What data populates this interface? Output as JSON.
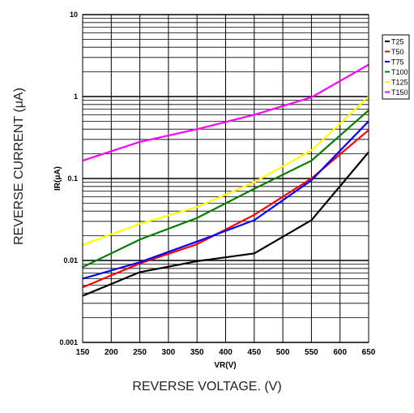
{
  "chart_data": {
    "type": "line",
    "title": "",
    "xlabel": "VR(V)",
    "ylabel": "IR(μA)",
    "outer_xlabel": "REVERSE VOLTAGE. (V)",
    "outer_ylabel": "REVERSE CURRENT (μA)",
    "x_scale": "linear",
    "y_scale": "log",
    "xlim": [
      150,
      650
    ],
    "ylim": [
      0.001,
      10
    ],
    "x_ticks": [
      "150",
      "200",
      "250",
      "300",
      "350",
      "400",
      "450",
      "500",
      "550",
      "600",
      "650"
    ],
    "y_ticks": [
      "0.001",
      "0.01",
      "0.1",
      "1",
      "10"
    ],
    "grid": true,
    "legend_position": "right",
    "x": [
      150,
      250,
      350,
      450,
      550,
      650
    ],
    "series": [
      {
        "name": "T25",
        "color": "#000000",
        "values": [
          0.0037,
          0.0072,
          0.0098,
          0.0122,
          0.031,
          0.21
        ]
      },
      {
        "name": "T50",
        "color": "#ff0000",
        "values": [
          0.0047,
          0.0092,
          0.0158,
          0.036,
          0.1,
          0.39
        ]
      },
      {
        "name": "T75",
        "color": "#0000ff",
        "values": [
          0.006,
          0.0095,
          0.017,
          0.031,
          0.095,
          0.5
        ]
      },
      {
        "name": "T100",
        "color": "#008000",
        "values": [
          0.0083,
          0.018,
          0.033,
          0.075,
          0.165,
          0.68
        ]
      },
      {
        "name": "T125",
        "color": "#ffff00",
        "values": [
          0.0155,
          0.028,
          0.045,
          0.09,
          0.22,
          1.0
        ]
      },
      {
        "name": "T150",
        "color": "#ff00ff",
        "values": [
          0.165,
          0.28,
          0.4,
          0.6,
          0.98,
          2.45
        ]
      }
    ]
  }
}
